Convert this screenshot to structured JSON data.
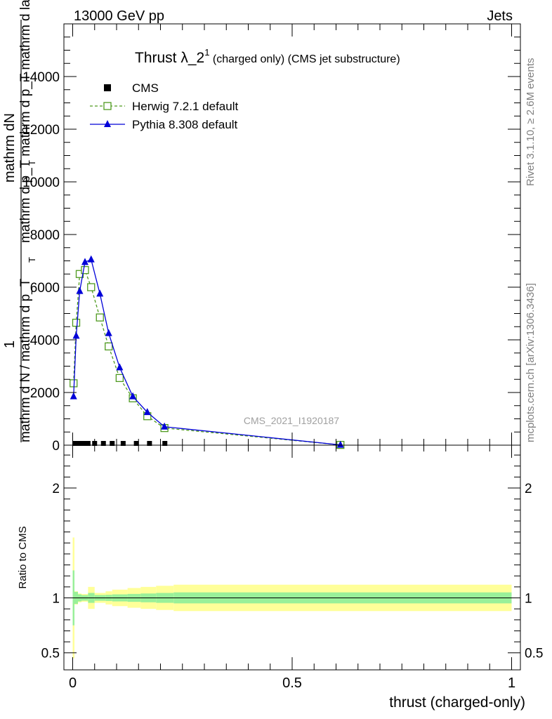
{
  "header": {
    "left": "13000 GeV pp",
    "right": "Jets"
  },
  "side_labels": {
    "rivet": "Rivet 3.1.10, ≥ 2.6M events",
    "mcplots": "mcplots.cern.ch [arXiv:1306.3436]"
  },
  "chart_data": [
    {
      "type": "line",
      "title_main": "Thrust λ_2",
      "title_sup": "1",
      "title_rest": " (charged only) (CMS jet substructure)",
      "watermark": "CMS_2021_I1920187",
      "ylabel_top": "mathrm dN",
      "ylabel_mid": "mathrm d p_T mathrm d p_T mathrm d lambda",
      "ylabel_sub_t1": "T",
      "ylabel_sub_t2": "T",
      "ylabel_one": "1",
      "ylabel_bottom": "mathrm d N / mathrm d p_T",
      "ylim": [
        0,
        16000
      ],
      "yticks": [
        0,
        2000,
        4000,
        6000,
        8000,
        10000,
        12000,
        14000
      ],
      "ytick_labels": [
        "0",
        "2000",
        "4000",
        "6000",
        "8000",
        "10000",
        "12000",
        "14000"
      ],
      "legend_position": "top-left",
      "series": [
        {
          "name": "CMS",
          "color": "#000000",
          "marker": "square",
          "x": [
            0.005,
            0.015,
            0.025,
            0.035,
            0.05,
            0.07,
            0.09,
            0.115,
            0.145,
            0.175,
            0.21
          ],
          "y": [
            0,
            0,
            0,
            0,
            0,
            0,
            0,
            0,
            0,
            0,
            0
          ]
        },
        {
          "name": "Herwig 7.2.1 default",
          "color": "#4f9a1f",
          "marker": "open-square",
          "x": [
            0.002,
            0.008,
            0.016,
            0.028,
            0.042,
            0.062,
            0.082,
            0.107,
            0.137,
            0.17,
            0.209,
            0.61
          ],
          "y": [
            2350,
            4650,
            6500,
            6650,
            6000,
            4850,
            3750,
            2550,
            1780,
            1100,
            650,
            10
          ]
        },
        {
          "name": "Pythia 8.308 default",
          "color": "#0000d8",
          "marker": "triangle",
          "x": [
            0.002,
            0.008,
            0.016,
            0.028,
            0.042,
            0.062,
            0.082,
            0.107,
            0.137,
            0.17,
            0.209,
            0.61
          ],
          "y": [
            1850,
            4150,
            5850,
            6950,
            7050,
            5750,
            4250,
            2950,
            1850,
            1250,
            700,
            10
          ]
        }
      ]
    },
    {
      "type": "area",
      "ylabel": "Ratio to CMS",
      "xlabel": "thrust (charged-only)",
      "xlim": [
        -0.02,
        1.02
      ],
      "xticks": [
        0,
        0.5,
        1
      ],
      "xtick_labels": [
        "0",
        "0.5",
        "1"
      ],
      "ylim": [
        0.345,
        2.39
      ],
      "ytick_values": [
        0.5,
        1,
        2
      ],
      "ytick_labels": [
        "0.5",
        "1",
        "2"
      ],
      "reference_line": 1,
      "bands": {
        "edges": [
          0,
          0.004,
          0.012,
          0.02,
          0.035,
          0.05,
          0.075,
          0.09,
          0.125,
          0.155,
          0.19,
          0.23,
          1
        ],
        "stat": [
          0.25,
          0.055,
          0.032,
          0.025,
          0.045,
          0.026,
          0.028,
          0.032,
          0.036,
          0.04,
          0.045,
          0.05
        ],
        "total": [
          0.55,
          0.06,
          0.04,
          0.035,
          0.1,
          0.045,
          0.06,
          0.075,
          0.09,
          0.1,
          0.11,
          0.12
        ]
      }
    }
  ]
}
